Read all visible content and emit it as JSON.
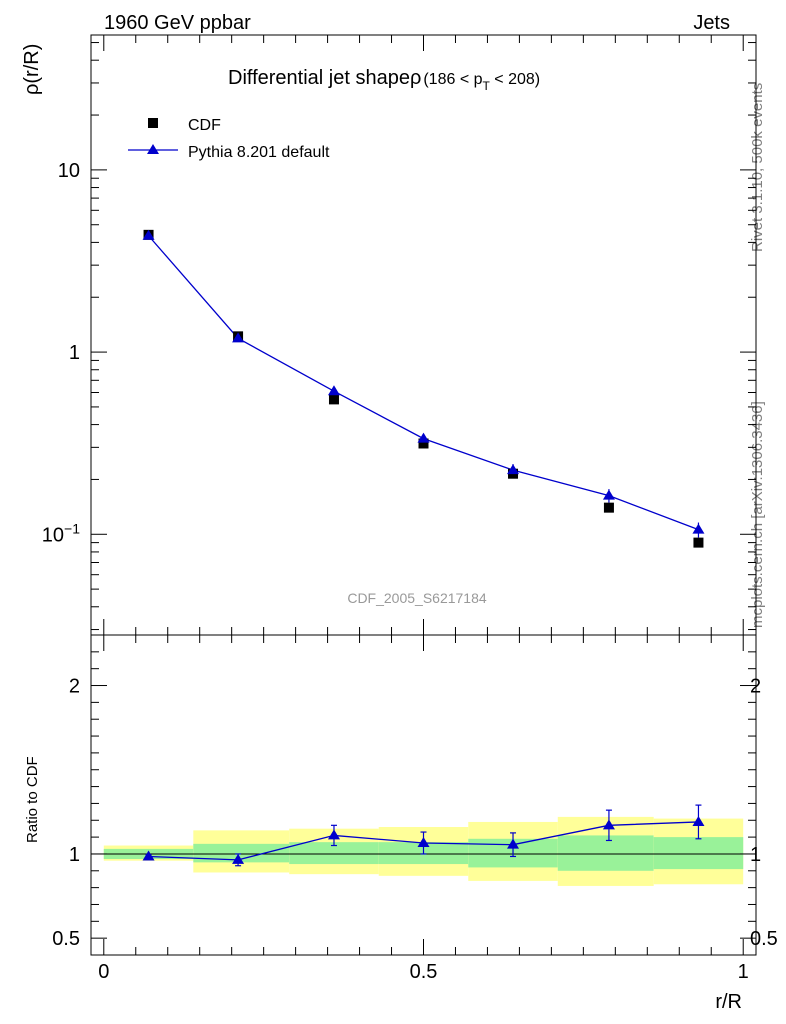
{
  "header": {
    "energy": "1960 GeV ppbar",
    "category": "Jets",
    "side_top": "Rivet 3.1.10,  500k events",
    "side_bottom": "mcplots.cern.ch [arXiv:1306.3436]",
    "watermark": "CDF_2005_S6217184"
  },
  "chart_data": [
    {
      "type": "scatter",
      "title_main": "Differential jet shapeρ",
      "title_cut": "(186 < p",
      "title_cut_sub": "T",
      "title_cut_end": " < 208)",
      "ylabel": "ρ(r/R)",
      "ylog": true,
      "ylim": [
        0.028,
        55
      ],
      "xlim": [
        -0.02,
        1.02
      ],
      "y_ticks": [
        {
          "value": 10,
          "label": "10"
        },
        {
          "value": 1,
          "label": "1"
        },
        {
          "value": 0.1,
          "label": "10",
          "sup": "−1"
        }
      ],
      "legend": [
        {
          "label": "CDF",
          "marker": "square",
          "color": "#000000"
        },
        {
          "label": "Pythia 8.201 default",
          "marker": "triangle",
          "color": "#0000cc"
        }
      ],
      "series": [
        {
          "name": "CDF",
          "x": [
            0.07,
            0.21,
            0.36,
            0.5,
            0.64,
            0.79,
            0.93
          ],
          "y": [
            4.4,
            1.22,
            0.55,
            0.315,
            0.215,
            0.14,
            0.09
          ],
          "color": "#000000"
        },
        {
          "name": "Pythia 8.201 default",
          "x": [
            0.07,
            0.21,
            0.36,
            0.5,
            0.64,
            0.79,
            0.93
          ],
          "y": [
            4.35,
            1.19,
            0.61,
            0.335,
            0.225,
            0.163,
            0.106
          ],
          "yerr": [
            0.05,
            0.02,
            0.015,
            0.02,
            0.018,
            0.014,
            0.01
          ],
          "color": "#0000cc"
        }
      ]
    },
    {
      "type": "scatter",
      "ylabel": "Ratio to CDF",
      "xlabel": "r/R",
      "ylim": [
        0.4,
        2.3
      ],
      "xlim": [
        -0.02,
        1.02
      ],
      "x_ticks": [
        {
          "value": 0,
          "label": "0"
        },
        {
          "value": 0.5,
          "label": "0.5"
        },
        {
          "value": 1,
          "label": "1"
        }
      ],
      "y_ticks": [
        {
          "value": 2,
          "label": "2"
        },
        {
          "value": 1,
          "label": "1"
        },
        {
          "value": 0.5,
          "label": "0.5"
        }
      ],
      "bands": [
        {
          "x0": 0.0,
          "x1": 0.14,
          "inner": [
            0.97,
            1.03
          ],
          "outer": [
            0.96,
            1.05
          ]
        },
        {
          "x0": 0.14,
          "x1": 0.29,
          "inner": [
            0.95,
            1.06
          ],
          "outer": [
            0.89,
            1.14
          ]
        },
        {
          "x0": 0.29,
          "x1": 0.43,
          "inner": [
            0.94,
            1.07
          ],
          "outer": [
            0.88,
            1.15
          ]
        },
        {
          "x0": 0.43,
          "x1": 0.57,
          "inner": [
            0.94,
            1.07
          ],
          "outer": [
            0.87,
            1.16
          ]
        },
        {
          "x0": 0.57,
          "x1": 0.71,
          "inner": [
            0.92,
            1.09
          ],
          "outer": [
            0.84,
            1.19
          ]
        },
        {
          "x0": 0.71,
          "x1": 0.86,
          "inner": [
            0.9,
            1.11
          ],
          "outer": [
            0.81,
            1.22
          ]
        },
        {
          "x0": 0.86,
          "x1": 1.0,
          "inner": [
            0.91,
            1.1
          ],
          "outer": [
            0.82,
            1.21
          ]
        }
      ],
      "series": [
        {
          "name": "Pythia 8.201 default",
          "x": [
            0.07,
            0.21,
            0.36,
            0.5,
            0.64,
            0.79,
            0.93
          ],
          "y": [
            0.985,
            0.965,
            1.11,
            1.065,
            1.055,
            1.17,
            1.19
          ],
          "yerr": [
            0.01,
            0.035,
            0.06,
            0.065,
            0.07,
            0.09,
            0.1
          ],
          "color": "#0000cc"
        }
      ]
    }
  ]
}
